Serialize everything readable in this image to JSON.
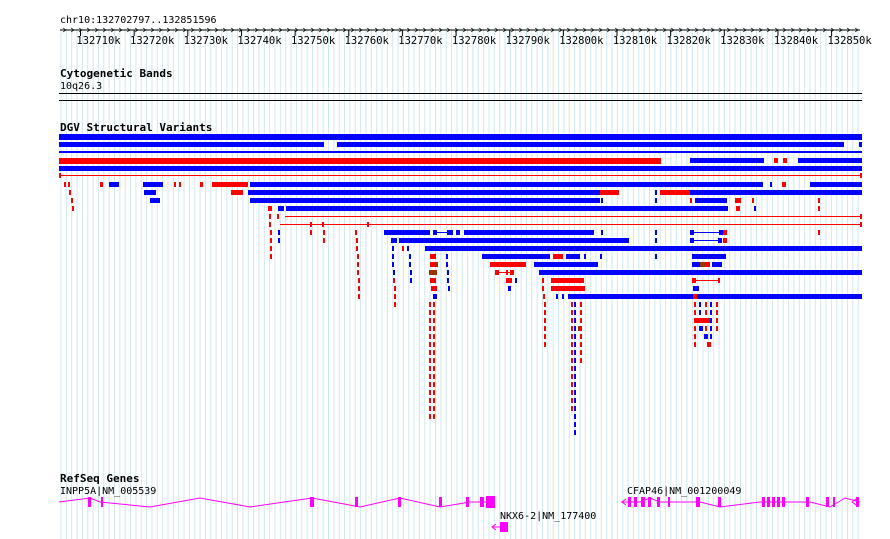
{
  "ruler": {
    "location": "chr10:132702797..132851596",
    "ticks": [
      "132710k",
      "132720k",
      "132730k",
      "132740k",
      "132750k",
      "132760k",
      "132770k",
      "132780k",
      "132790k",
      "132800k",
      "132810k",
      "132820k",
      "132830k",
      "132840k",
      "132850k"
    ]
  },
  "tracks": {
    "cytoband": {
      "title": "Cytogenetic Bands",
      "band_label": "10q26.3"
    },
    "dgv": {
      "title": "DGV Structural Variants"
    },
    "refseq": {
      "title": "RefSeq Genes"
    }
  },
  "genes": [
    {
      "name": "INPP5A|NM_005539",
      "strand": "-",
      "start": 132702797,
      "end": 132777500
    },
    {
      "name": "NKX6-2|NM_177400",
      "strand": "-",
      "start": 132779500,
      "end": 132781500
    },
    {
      "name": "CFAP46|NM_001200049",
      "strand": "-",
      "start": 132813000,
      "end": 132851596
    }
  ],
  "colors": {
    "gain": "#0000ff",
    "loss": "#ff0000",
    "complex": "#993300",
    "gene": "#ff00ff",
    "grid": "#cfe8f0"
  }
}
